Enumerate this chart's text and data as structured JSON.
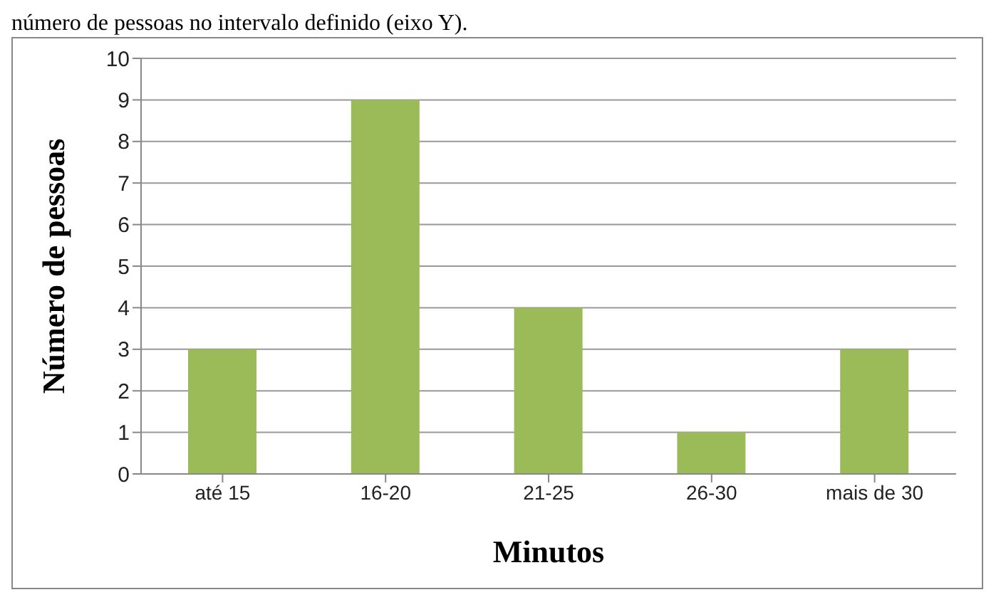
{
  "chart_data": {
    "type": "bar",
    "xlabel": "Minutos",
    "ylabel": "Número de pessoas",
    "annotations": [
      "número de pessoas no intervalo definido (eixo Y)."
    ],
    "categories": [
      "até 15",
      "16-20",
      "21-25",
      "26-30",
      "mais de 30"
    ],
    "values": [
      3,
      9,
      4,
      1,
      3
    ],
    "color": "#9bbb59",
    "ylim": [
      0,
      10
    ],
    "yticks": [
      0,
      1,
      2,
      3,
      4,
      5,
      6,
      7,
      8,
      9,
      10
    ],
    "grid": "y"
  }
}
